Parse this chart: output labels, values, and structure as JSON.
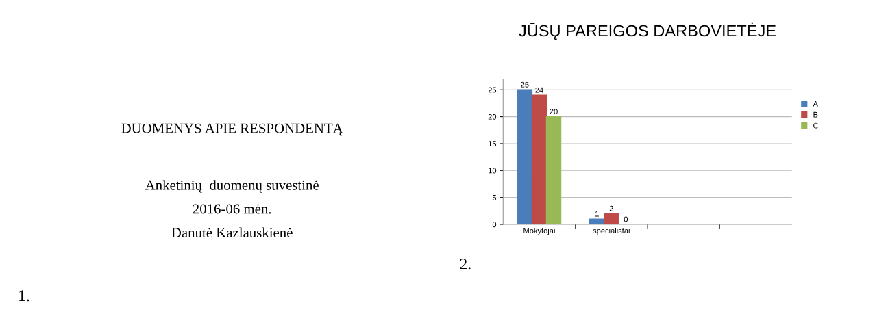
{
  "chart_data": [
    {
      "type": "other",
      "title": "DUOMENYS APIE RESPONDENTĄ",
      "annotations": [
        "Anketinių  duomenų suvestinė",
        "2016-06 mėn.",
        "Danutė Kazlauskienė",
        "1."
      ]
    },
    {
      "type": "bar",
      "title": "JŪSŲ PAREIGOS DARBOVIETĖJE",
      "categories": [
        "Mokytojai",
        "specialistai",
        null,
        null
      ],
      "series": [
        {
          "name": "A",
          "color": "#4a7ebb",
          "values": [
            25,
            1,
            null,
            null
          ]
        },
        {
          "name": "B",
          "color": "#be4b48",
          "values": [
            24,
            2,
            null,
            null
          ]
        },
        {
          "name": "C",
          "color": "#98b954",
          "values": [
            20,
            0,
            null,
            null
          ]
        }
      ],
      "ylim": [
        0,
        27
      ],
      "yticks": [
        0,
        5,
        10,
        15,
        20,
        25
      ],
      "grid": "y",
      "legend": "right",
      "data_labels": true,
      "annotations": [
        "2."
      ]
    }
  ]
}
